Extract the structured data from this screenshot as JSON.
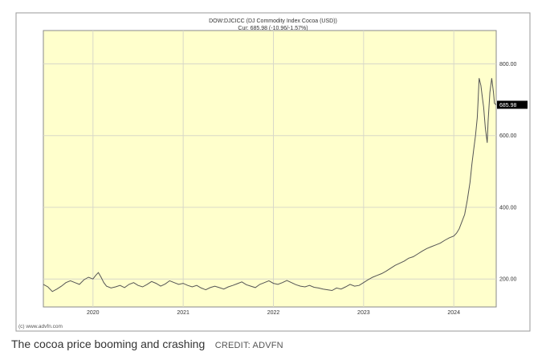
{
  "chart_data": {
    "type": "line",
    "title": "DOW:DJCICC (DJ Commodity Index Cocoa (USD))",
    "subtitle": "Cur: 685.98 (-10.96/-1.57%)",
    "current_value_label": "685.98",
    "current_value": 685.98,
    "x_tick_labels": [
      "2020",
      "2021",
      "2022",
      "2023",
      "2024"
    ],
    "x_tick_values": [
      2020.0,
      2021.0,
      2022.0,
      2023.0,
      2024.0
    ],
    "xlim": [
      2019.45,
      2024.47
    ],
    "y_tick_labels": [
      "200.00",
      "400.00",
      "600.00",
      "800.00"
    ],
    "y_tick_values": [
      200,
      400,
      600,
      800
    ],
    "ylim": [
      122,
      893
    ],
    "grid": true,
    "legend": "none",
    "series": [
      {
        "x": [
          2019.45,
          2019.5,
          2019.55,
          2019.6,
          2019.65,
          2019.7,
          2019.75,
          2019.8,
          2019.85,
          2019.9,
          2019.95,
          2020.0,
          2020.03,
          2020.06,
          2020.09,
          2020.12,
          2020.15,
          2020.2,
          2020.25,
          2020.3,
          2020.35,
          2020.4,
          2020.45,
          2020.5,
          2020.55,
          2020.6,
          2020.65,
          2020.7,
          2020.75,
          2020.8,
          2020.85,
          2020.9,
          2020.95,
          2021.0,
          2021.05,
          2021.1,
          2021.15,
          2021.2,
          2021.25,
          2021.3,
          2021.35,
          2021.4,
          2021.45,
          2021.5,
          2021.55,
          2021.6,
          2021.65,
          2021.7,
          2021.75,
          2021.8,
          2021.85,
          2021.9,
          2021.95,
          2022.0,
          2022.05,
          2022.1,
          2022.15,
          2022.2,
          2022.25,
          2022.3,
          2022.35,
          2022.4,
          2022.45,
          2022.5,
          2022.55,
          2022.6,
          2022.65,
          2022.7,
          2022.75,
          2022.8,
          2022.85,
          2022.9,
          2022.95,
          2023.0,
          2023.05,
          2023.1,
          2023.15,
          2023.2,
          2023.25,
          2023.3,
          2023.35,
          2023.4,
          2023.45,
          2023.5,
          2023.55,
          2023.6,
          2023.65,
          2023.7,
          2023.75,
          2023.8,
          2023.85,
          2023.9,
          2023.95,
          2024.0,
          2024.03,
          2024.06,
          2024.09,
          2024.12,
          2024.15,
          2024.18,
          2024.2,
          2024.22,
          2024.24,
          2024.26,
          2024.27,
          2024.28,
          2024.3,
          2024.32,
          2024.33,
          2024.35,
          2024.37,
          2024.38,
          2024.4,
          2024.42,
          2024.44,
          2024.45,
          2024.47
        ],
        "values": [
          185,
          178,
          165,
          172,
          180,
          190,
          195,
          190,
          185,
          198,
          205,
          200,
          210,
          218,
          205,
          190,
          180,
          175,
          178,
          182,
          176,
          185,
          190,
          182,
          178,
          185,
          193,
          188,
          180,
          186,
          195,
          190,
          185,
          188,
          182,
          178,
          182,
          175,
          170,
          176,
          180,
          176,
          172,
          178,
          182,
          187,
          192,
          184,
          180,
          176,
          185,
          190,
          195,
          188,
          185,
          190,
          196,
          190,
          184,
          180,
          178,
          182,
          177,
          175,
          172,
          170,
          168,
          175,
          172,
          178,
          185,
          180,
          182,
          190,
          198,
          205,
          210,
          215,
          222,
          230,
          238,
          244,
          250,
          258,
          262,
          270,
          278,
          285,
          290,
          295,
          300,
          308,
          315,
          320,
          328,
          340,
          360,
          380,
          420,
          470,
          520,
          560,
          600,
          650,
          700,
          760,
          740,
          700,
          680,
          620,
          580,
          640,
          720,
          760,
          720,
          690,
          685.98
        ]
      }
    ],
    "watermark": "(c) www.advfn.com",
    "colors": {
      "plot_background": "#ffffcc",
      "line": "#555555",
      "grid": "#d8d8c8",
      "frame": "#9a9a9a",
      "current_value_box": "#000000",
      "current_value_text": "#ffffff"
    }
  },
  "caption": {
    "text": "The cocoa price booming and crashing",
    "credit": "CREDIT: ADVFN"
  }
}
